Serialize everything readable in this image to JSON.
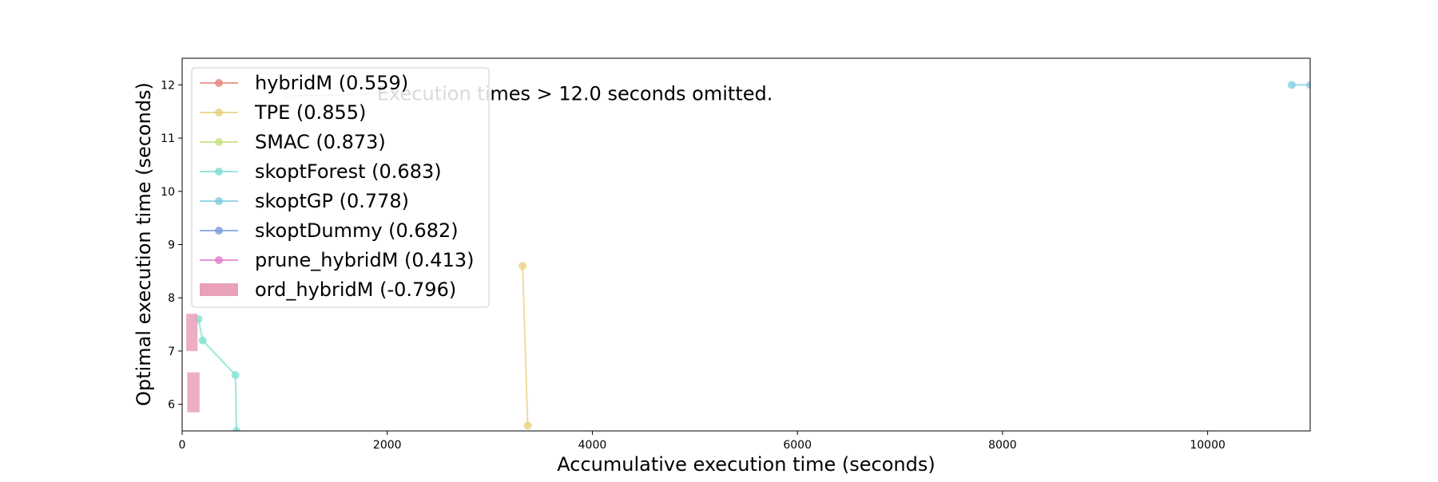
{
  "chart_data": {
    "type": "line",
    "xlabel": "Accumulative execution time (seconds)",
    "ylabel": "Optimal execution time (seconds)",
    "xlim": [
      0,
      11000
    ],
    "ylim": [
      5.5,
      12.5
    ],
    "xticks": [
      0,
      2000,
      4000,
      6000,
      8000,
      10000
    ],
    "yticks": [
      6,
      7,
      8,
      9,
      10,
      11,
      12
    ],
    "grid": false,
    "legend_position": "top-left",
    "annotation": {
      "text": "Execution times > 12.0 seconds omitted.",
      "arrow_from": [
        1900,
        11.85
      ],
      "arrow_to": [
        1000,
        11.8
      ],
      "color": "#000000",
      "arrow_color": "#b3b3b3"
    },
    "series": [
      {
        "name": "hybridM (0.559)",
        "color": "#e8837a",
        "style": "line",
        "points": []
      },
      {
        "name": "TPE (0.855)",
        "color": "#e8d07a",
        "style": "line",
        "points": [
          [
            3320,
            8.6
          ],
          [
            3370,
            5.6
          ]
        ]
      },
      {
        "name": "SMAC (0.873)",
        "color": "#c4e07a",
        "style": "line",
        "points": []
      },
      {
        "name": "skoptForest (0.683)",
        "color": "#7ae0cf",
        "style": "line",
        "points": [
          [
            160,
            7.6
          ],
          [
            200,
            7.2
          ],
          [
            520,
            6.55
          ],
          [
            530,
            5.5
          ]
        ]
      },
      {
        "name": "skoptGP (0.778)",
        "color": "#7acbe0",
        "style": "line",
        "points": [
          [
            10820,
            12.0
          ],
          [
            11000,
            12.0
          ]
        ]
      },
      {
        "name": "skoptDummy (0.682)",
        "color": "#7a9be0",
        "style": "line",
        "points": []
      },
      {
        "name": "prune_hybridM (0.413)",
        "color": "#e07acb",
        "style": "line",
        "points": []
      },
      {
        "name": "ord_hybridM (-0.796)",
        "color": "#e9a0bb",
        "style": "band",
        "segments": [
          {
            "x": [
              40,
              150
            ],
            "y": [
              7.0,
              7.7
            ]
          },
          {
            "x": [
              50,
              170
            ],
            "y": [
              5.85,
              6.6
            ]
          }
        ]
      }
    ]
  }
}
